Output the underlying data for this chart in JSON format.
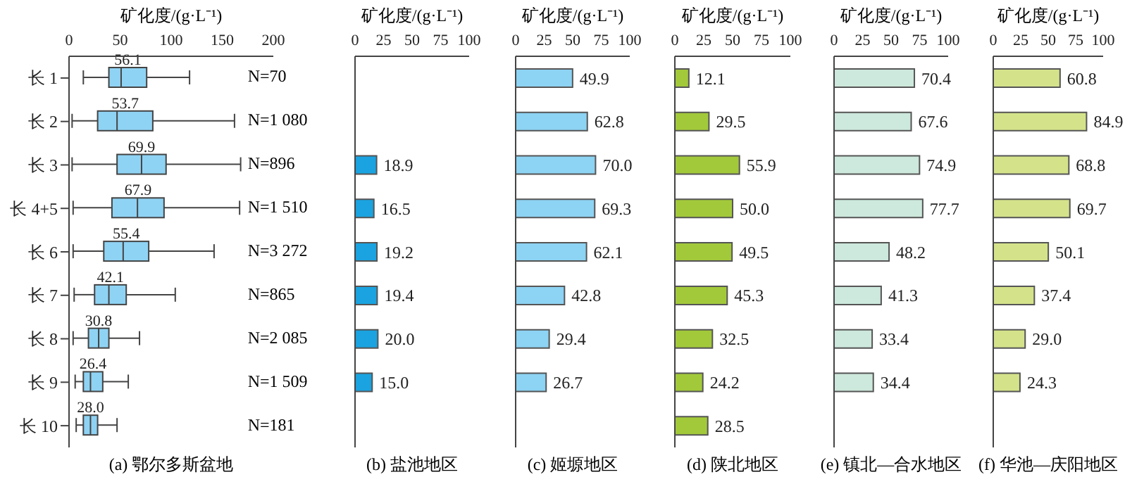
{
  "chart_data": [
    {
      "type": "box",
      "orientation": "horizontal",
      "title": "(a) 鄂尔多斯盆地",
      "xlabel": "矿化度/(g·L⁻¹)",
      "categories": [
        "长 1",
        "长 2",
        "长 3",
        "长 4+5",
        "长 6",
        "长 7",
        "长 8",
        "长 9",
        "长 10"
      ],
      "xlim": [
        0,
        200
      ],
      "xticks": [
        0,
        50,
        100,
        150,
        200
      ],
      "color": "#8fd3f4",
      "boxes": [
        {
          "low": 14,
          "q1": 39,
          "median": 51,
          "q3": 76,
          "high": 118
        },
        {
          "low": 3,
          "q1": 28,
          "median": 47,
          "q3": 82,
          "high": 162
        },
        {
          "low": 3,
          "q1": 47,
          "median": 71,
          "q3": 95,
          "high": 168
        },
        {
          "low": 4,
          "q1": 42,
          "median": 67,
          "q3": 93,
          "high": 167
        },
        {
          "low": 4,
          "q1": 34,
          "median": 53,
          "q3": 78,
          "high": 142
        },
        {
          "low": 5,
          "q1": 25,
          "median": 39,
          "q3": 56,
          "high": 104
        },
        {
          "low": 4,
          "q1": 19,
          "median": 29,
          "q3": 39,
          "high": 69
        },
        {
          "low": 6,
          "q1": 14,
          "median": 21,
          "q3": 33,
          "high": 58
        },
        {
          "low": 7,
          "q1": 14,
          "median": 21,
          "q3": 28,
          "high": 47
        }
      ],
      "value_labels": [
        "56.1",
        "53.7",
        "69.9",
        "67.9",
        "55.4",
        "42.1",
        "30.8",
        "26.4",
        "28.0"
      ],
      "annotations": [
        "N=70",
        "N=1 080",
        "N=896",
        "N=1 510",
        "N=3 272",
        "N=865",
        "N=2 085",
        "N=1 509",
        "N=181"
      ]
    },
    {
      "type": "bar",
      "orientation": "horizontal",
      "title": "(b) 盐池地区",
      "xlabel": "矿化度/(g·L⁻¹)",
      "categories": [
        null,
        null,
        null,
        null,
        null,
        null,
        null,
        null,
        null
      ],
      "tick_labels": "x",
      "xlim": [
        0,
        100
      ],
      "xticks": [
        0,
        25,
        50,
        75,
        100
      ],
      "color": "#1aa3e0",
      "values": [
        null,
        null,
        18.9,
        16.5,
        19.2,
        19.4,
        20.0,
        15.0,
        null
      ],
      "value_labels": [
        null,
        null,
        "18.9",
        "16.5",
        "19.2",
        "19.4",
        "20.0",
        "15.0",
        null
      ]
    },
    {
      "type": "bar",
      "orientation": "horizontal",
      "title": "(c) 姬塬地区",
      "xlabel": "矿化度/(g·L⁻¹)",
      "categories": [
        null,
        null,
        null,
        null,
        null,
        null,
        null,
        null,
        null
      ],
      "tick_labels": "x",
      "xlim": [
        0,
        100
      ],
      "xticks": [
        0,
        25,
        50,
        75,
        100
      ],
      "color": "#8dd3f3",
      "values": [
        49.9,
        62.8,
        70.0,
        69.3,
        62.1,
        42.8,
        29.4,
        26.7,
        null
      ],
      "value_labels": [
        "49.9",
        "62.8",
        "70.0",
        "69.3",
        "62.1",
        "42.8",
        "29.4",
        "26.7",
        null
      ]
    },
    {
      "type": "bar",
      "orientation": "horizontal",
      "title": "(d) 陕北地区",
      "xlabel": "矿化度/(g·L⁻¹)",
      "categories": [
        null,
        null,
        null,
        null,
        null,
        null,
        null,
        null,
        null
      ],
      "tick_labels": "x",
      "xlim": [
        0,
        100
      ],
      "xticks": [
        0,
        25,
        50,
        75,
        100
      ],
      "color": "#a2c93a",
      "values": [
        12.1,
        29.5,
        55.9,
        50.0,
        49.5,
        45.3,
        32.5,
        24.2,
        28.5
      ],
      "value_labels": [
        "12.1",
        "29.5",
        "55.9",
        "50.0",
        "49.5",
        "45.3",
        "32.5",
        "24.2",
        "28.5"
      ]
    },
    {
      "type": "bar",
      "orientation": "horizontal",
      "title": "(e) 镇北—合水地区",
      "xlabel": "矿化度/(g·L⁻¹)",
      "categories": [
        null,
        null,
        null,
        null,
        null,
        null,
        null,
        null,
        null
      ],
      "tick_labels": "x",
      "xlim": [
        0,
        100
      ],
      "xticks": [
        0,
        25,
        50,
        75,
        100
      ],
      "color": "#cde8dc",
      "values": [
        70.4,
        67.6,
        74.9,
        77.7,
        48.2,
        41.3,
        33.4,
        34.4,
        null
      ],
      "value_labels": [
        "70.4",
        "67.6",
        "74.9",
        "77.7",
        "48.2",
        "41.3",
        "33.4",
        "34.4",
        null
      ]
    },
    {
      "type": "bar",
      "orientation": "horizontal",
      "title": "(f) 华池—庆阳地区",
      "xlabel": "矿化度/(g·L⁻¹)",
      "categories": [
        null,
        null,
        null,
        null,
        null,
        null,
        null,
        null,
        null
      ],
      "tick_labels": "x",
      "xlim": [
        0,
        100
      ],
      "xticks": [
        0,
        25,
        50,
        75,
        100
      ],
      "color": "#d4e38a",
      "values": [
        60.8,
        84.9,
        68.8,
        69.7,
        50.1,
        37.4,
        29.0,
        24.3,
        null
      ],
      "value_labels": [
        "60.8",
        "84.9",
        "68.8",
        "69.7",
        "50.1",
        "37.4",
        "29.0",
        "24.3",
        null
      ]
    }
  ]
}
